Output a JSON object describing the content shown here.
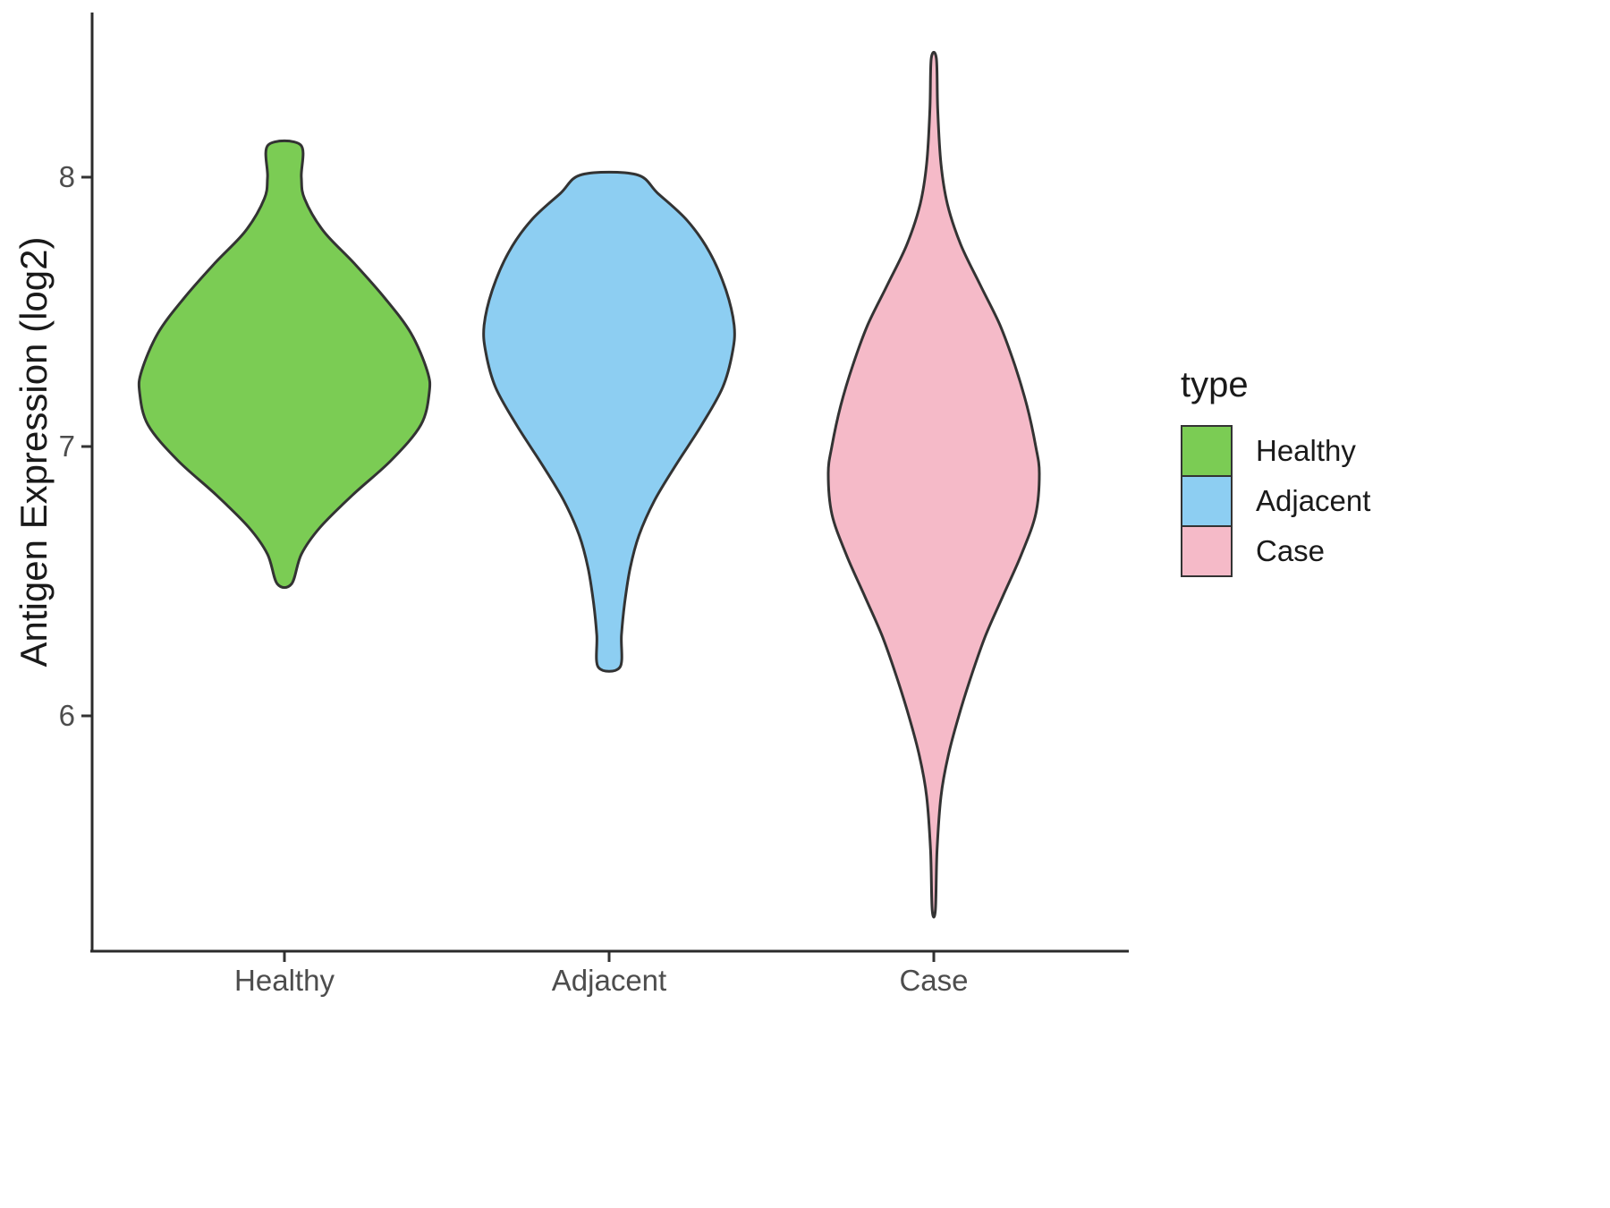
{
  "figure": {
    "background": "#FFFFFF"
  },
  "y_axis": {
    "label": "Antigen Expression (log2)",
    "ticks": [
      {
        "value": 8,
        "label": "8"
      },
      {
        "value": 7,
        "label": "7"
      },
      {
        "value": 6,
        "label": "6"
      }
    ]
  },
  "x_axis": {
    "categories": [
      "Healthy",
      "Adjacent",
      "Case"
    ]
  },
  "legend": {
    "title": "type",
    "entries": [
      {
        "label": "Healthy",
        "color": "#7BCC54"
      },
      {
        "label": "Adjacent",
        "color": "#8DCEF2"
      },
      {
        "label": "Case",
        "color": "#F5BAC8"
      }
    ]
  },
  "chart_data": {
    "type": "violin",
    "title": "",
    "xlabel": "",
    "ylabel": "Antigen Expression (log2)",
    "categories": [
      "Healthy",
      "Adjacent",
      "Case"
    ],
    "ylim": [
      5.1,
      8.6
    ],
    "y_ticks": [
      6,
      7,
      8
    ],
    "grid": false,
    "legend_title": "type",
    "legend_position": "right",
    "outline_color": "#333333",
    "series": [
      {
        "name": "Healthy",
        "color": "#7BCC54",
        "value_range": [
          6.49,
          8.12
        ],
        "profile_note": "pairs of [expression_value, half_width_fraction_of_category_slot]",
        "profile": [
          [
            8.12,
            0.05
          ],
          [
            8.0,
            0.052
          ],
          [
            7.92,
            0.062
          ],
          [
            7.8,
            0.12
          ],
          [
            7.68,
            0.215
          ],
          [
            7.55,
            0.31
          ],
          [
            7.42,
            0.39
          ],
          [
            7.28,
            0.44
          ],
          [
            7.2,
            0.446
          ],
          [
            7.08,
            0.42
          ],
          [
            6.95,
            0.33
          ],
          [
            6.82,
            0.21
          ],
          [
            6.7,
            0.11
          ],
          [
            6.6,
            0.052
          ],
          [
            6.49,
            0.022
          ]
        ]
      },
      {
        "name": "Adjacent",
        "color": "#8DCEF2",
        "value_range": [
          6.18,
          8.01
        ],
        "profile_note": "pairs of [expression_value, half_width_fraction_of_category_slot]",
        "profile": [
          [
            8.01,
            0.083
          ],
          [
            7.94,
            0.15
          ],
          [
            7.84,
            0.24
          ],
          [
            7.72,
            0.31
          ],
          [
            7.58,
            0.36
          ],
          [
            7.45,
            0.385
          ],
          [
            7.35,
            0.38
          ],
          [
            7.22,
            0.35
          ],
          [
            7.08,
            0.285
          ],
          [
            6.93,
            0.205
          ],
          [
            6.8,
            0.14
          ],
          [
            6.67,
            0.092
          ],
          [
            6.55,
            0.065
          ],
          [
            6.42,
            0.048
          ],
          [
            6.3,
            0.038
          ],
          [
            6.18,
            0.033
          ]
        ]
      },
      {
        "name": "Case",
        "color": "#F5BAC8",
        "value_range": [
          5.28,
          8.44
        ],
        "profile_note": "pairs of [expression_value, half_width_fraction_of_category_slot]",
        "profile": [
          [
            8.44,
            0.008
          ],
          [
            8.25,
            0.012
          ],
          [
            8.05,
            0.022
          ],
          [
            7.9,
            0.042
          ],
          [
            7.75,
            0.083
          ],
          [
            7.6,
            0.143
          ],
          [
            7.45,
            0.204
          ],
          [
            7.3,
            0.25
          ],
          [
            7.15,
            0.287
          ],
          [
            7.0,
            0.314
          ],
          [
            6.9,
            0.325
          ],
          [
            6.75,
            0.314
          ],
          [
            6.6,
            0.27
          ],
          [
            6.45,
            0.215
          ],
          [
            6.3,
            0.16
          ],
          [
            6.15,
            0.116
          ],
          [
            6.0,
            0.077
          ],
          [
            5.85,
            0.044
          ],
          [
            5.7,
            0.022
          ],
          [
            5.5,
            0.01
          ],
          [
            5.28,
            0.005
          ]
        ]
      }
    ]
  }
}
